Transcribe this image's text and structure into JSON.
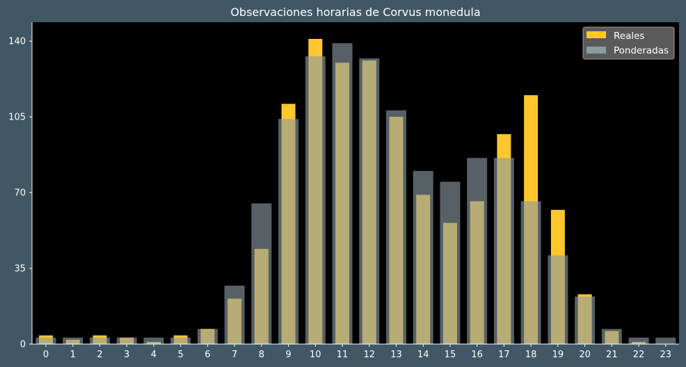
{
  "chart_data": {
    "type": "bar",
    "title": "Observaciones horarias de Corvus monedula",
    "xlabel": "",
    "ylabel": "",
    "categories": [
      "0",
      "1",
      "2",
      "3",
      "4",
      "5",
      "6",
      "7",
      "8",
      "9",
      "10",
      "11",
      "12",
      "13",
      "14",
      "15",
      "16",
      "17",
      "18",
      "19",
      "20",
      "21",
      "22",
      "23"
    ],
    "series": [
      {
        "name": "Reales",
        "color": "#ffc72c",
        "values": [
          4,
          2,
          4,
          3,
          1,
          4,
          7,
          21,
          44,
          111,
          141,
          130,
          131,
          105,
          69,
          56,
          66,
          97,
          115,
          62,
          23,
          6,
          1,
          0
        ]
      },
      {
        "name": "Ponderadas",
        "color": "#8a9ba3",
        "values": [
          3,
          3,
          3,
          3,
          3,
          3,
          7,
          27,
          65,
          104,
          133,
          139,
          132,
          108,
          80,
          75,
          86,
          86,
          66,
          41,
          22,
          7,
          3,
          3
        ]
      }
    ],
    "yticks": [
      0,
      35,
      70,
      105,
      140
    ],
    "ylim": [
      0,
      148.7
    ],
    "grid": false,
    "legend_position": "top-right"
  }
}
